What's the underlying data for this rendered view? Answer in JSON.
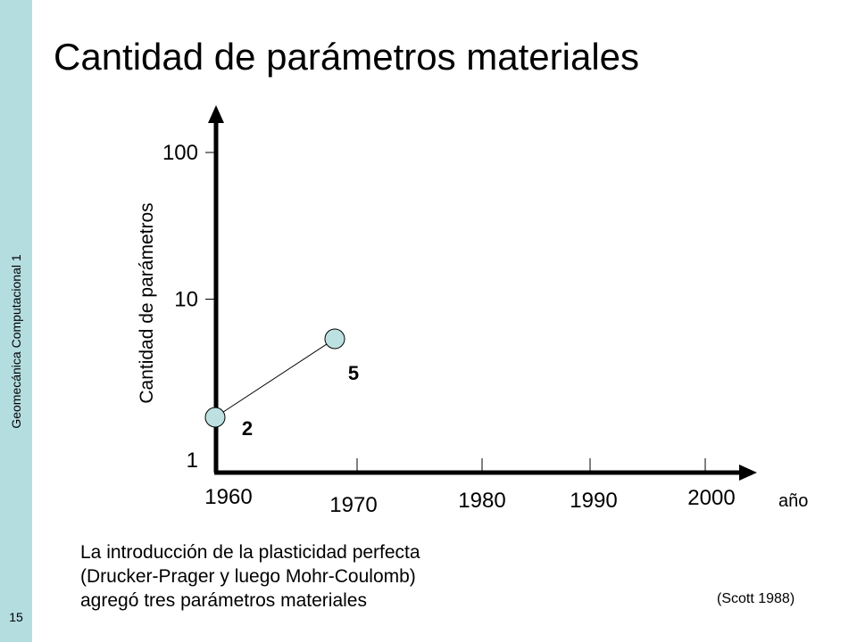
{
  "sidebar": {
    "course": "Geomecánica Computacional 1",
    "page_number": "15"
  },
  "slide": {
    "title": "Cantidad de parámetros materiales",
    "caption": [
      "La introducción de la plasticidad perfecta",
      "(Drucker-Prager y luego Mohr-Coulomb)",
      "agregó tres parámetros materiales"
    ],
    "source": "(Scott 1988)"
  },
  "chart_data": {
    "type": "line",
    "xlabel": "año",
    "ylabel": "Cantidad de parámetros",
    "x_ticks": [
      "1960",
      "1970",
      "1980",
      "1990",
      "2000"
    ],
    "y_ticks": [
      "1",
      "10",
      "100"
    ],
    "y_scale": "log",
    "xlim": [
      1960,
      2000
    ],
    "ylim": [
      1,
      100
    ],
    "grid": false,
    "series": [
      {
        "x": [
          1960,
          1970
        ],
        "y": [
          2,
          5
        ],
        "labels": [
          "2",
          "5"
        ]
      }
    ]
  }
}
